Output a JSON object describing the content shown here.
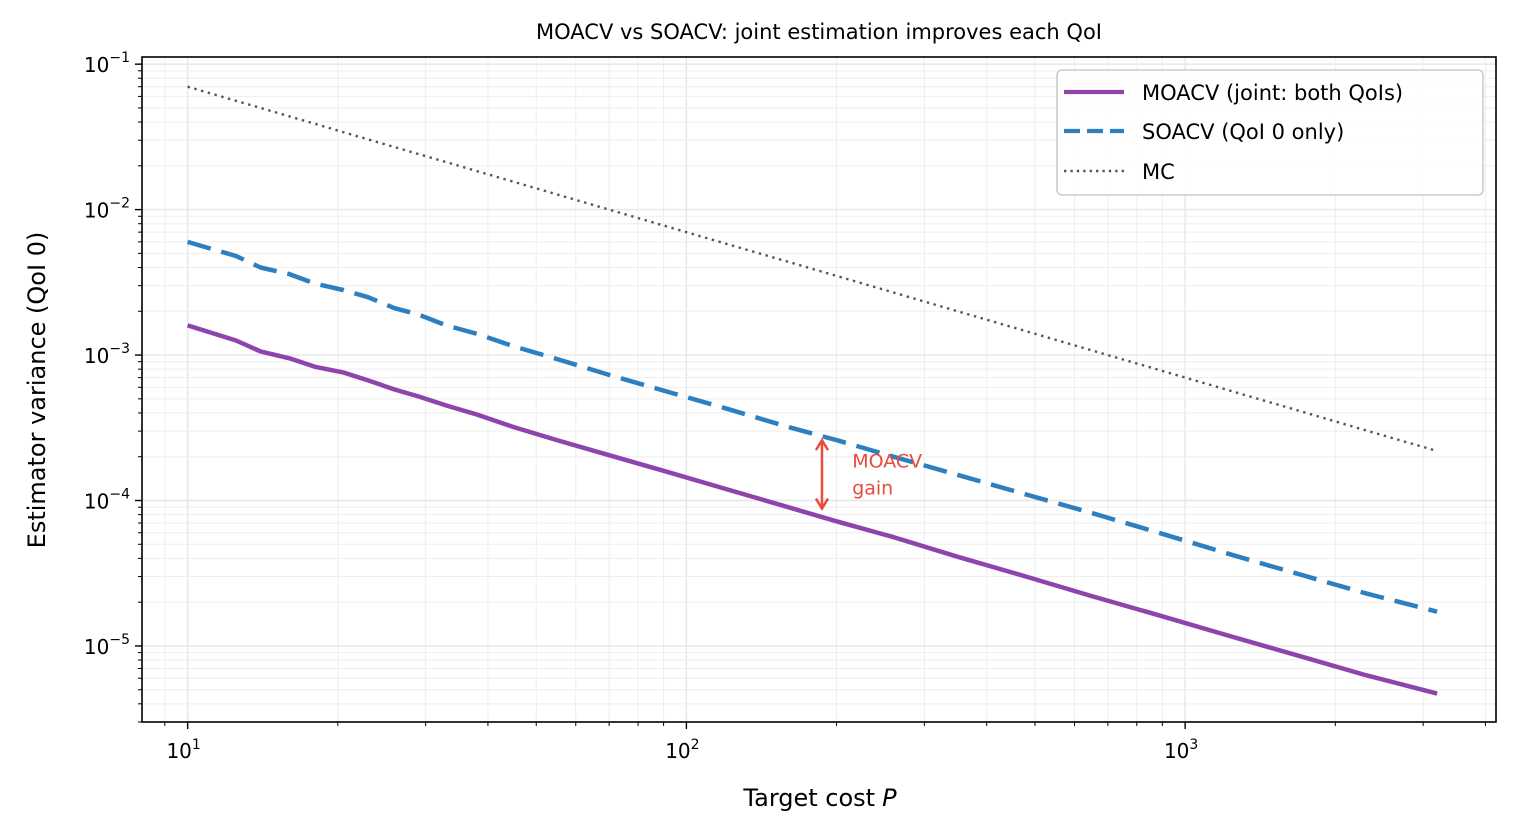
{
  "chart_data": {
    "type": "line",
    "title": "MOACV vs SOACV: joint estimation improves each QoI",
    "xlabel": "Target cost",
    "xlabel_italic": "P",
    "ylabel": "Estimator variance (QoI 0)",
    "xscale": "log",
    "yscale": "log",
    "xlim": [
      8.1,
      4200
    ],
    "ylim": [
      3e-06,
      0.112
    ],
    "grid": true,
    "grid_minor": true,
    "legend_position": "top-right",
    "x_ticks": [
      {
        "value": 10,
        "base": "10",
        "exp": "1"
      },
      {
        "value": 100,
        "base": "10",
        "exp": "2"
      },
      {
        "value": 1000,
        "base": "10",
        "exp": "3"
      }
    ],
    "y_ticks": [
      {
        "value": 0.1,
        "base": "10",
        "exp": "−1"
      },
      {
        "value": 0.01,
        "base": "10",
        "exp": "−2"
      },
      {
        "value": 0.001,
        "base": "10",
        "exp": "−3"
      },
      {
        "value": 0.0001,
        "base": "10",
        "exp": "−4"
      },
      {
        "value": 1e-05,
        "base": "10",
        "exp": "−5"
      }
    ],
    "x": [
      10,
      12.5,
      14,
      16,
      18,
      20.5,
      23,
      26,
      29,
      33,
      38,
      45,
      55,
      70,
      90,
      120,
      160,
      200,
      260,
      350,
      480,
      650,
      900,
      1250,
      1700,
      2300,
      3200
    ],
    "series": [
      {
        "name": "MOACV (joint: both QoIs)",
        "style": "solid",
        "color": "#8e44ad",
        "values": [
          0.0016,
          0.00126,
          0.00106,
          0.00095,
          0.00083,
          0.00076,
          0.00067,
          0.00058,
          0.00052,
          0.00045,
          0.00039,
          0.00032,
          0.00026,
          0.000205,
          0.00016,
          0.00012,
          9e-05,
          7.2e-05,
          5.6e-05,
          4.1e-05,
          3e-05,
          2.2e-05,
          1.6e-05,
          1.15e-05,
          8.5e-06,
          6.3e-06,
          4.7e-06
        ]
      },
      {
        "name": "SOACV (QoI 0 only)",
        "style": "dashed",
        "color": "#2e7fbf",
        "values": [
          0.006,
          0.0048,
          0.004,
          0.0036,
          0.0031,
          0.0028,
          0.0025,
          0.0021,
          0.0019,
          0.0016,
          0.0014,
          0.00115,
          0.00094,
          0.00073,
          0.00057,
          0.00043,
          0.00032,
          0.00026,
          0.0002,
          0.00015,
          0.00011,
          8.2e-05,
          5.9e-05,
          4.2e-05,
          3.1e-05,
          2.3e-05,
          1.72e-05
        ]
      },
      {
        "name": "MC",
        "style": "dotted",
        "color": "#555555",
        "values": [
          0.07,
          0.056,
          0.05,
          0.04375,
          0.0389,
          0.0341,
          0.0304,
          0.0269,
          0.0241,
          0.0212,
          0.0184,
          0.01556,
          0.01273,
          0.01,
          0.00778,
          0.00583,
          0.004375,
          0.0035,
          0.00269,
          0.002,
          0.001458,
          0.001077,
          0.000778,
          0.00056,
          0.000412,
          0.000304,
          0.000219
        ]
      }
    ],
    "annotation": {
      "text_line1": "MOACV",
      "text_line2": "gain",
      "color": "#e74c3c",
      "arrow_x": 187,
      "arrow_y_top": 0.00026,
      "arrow_y_bottom": 8.8e-05,
      "text_x": 215,
      "text_y_line1": 0.00018,
      "text_y_line2": 0.00011
    }
  }
}
